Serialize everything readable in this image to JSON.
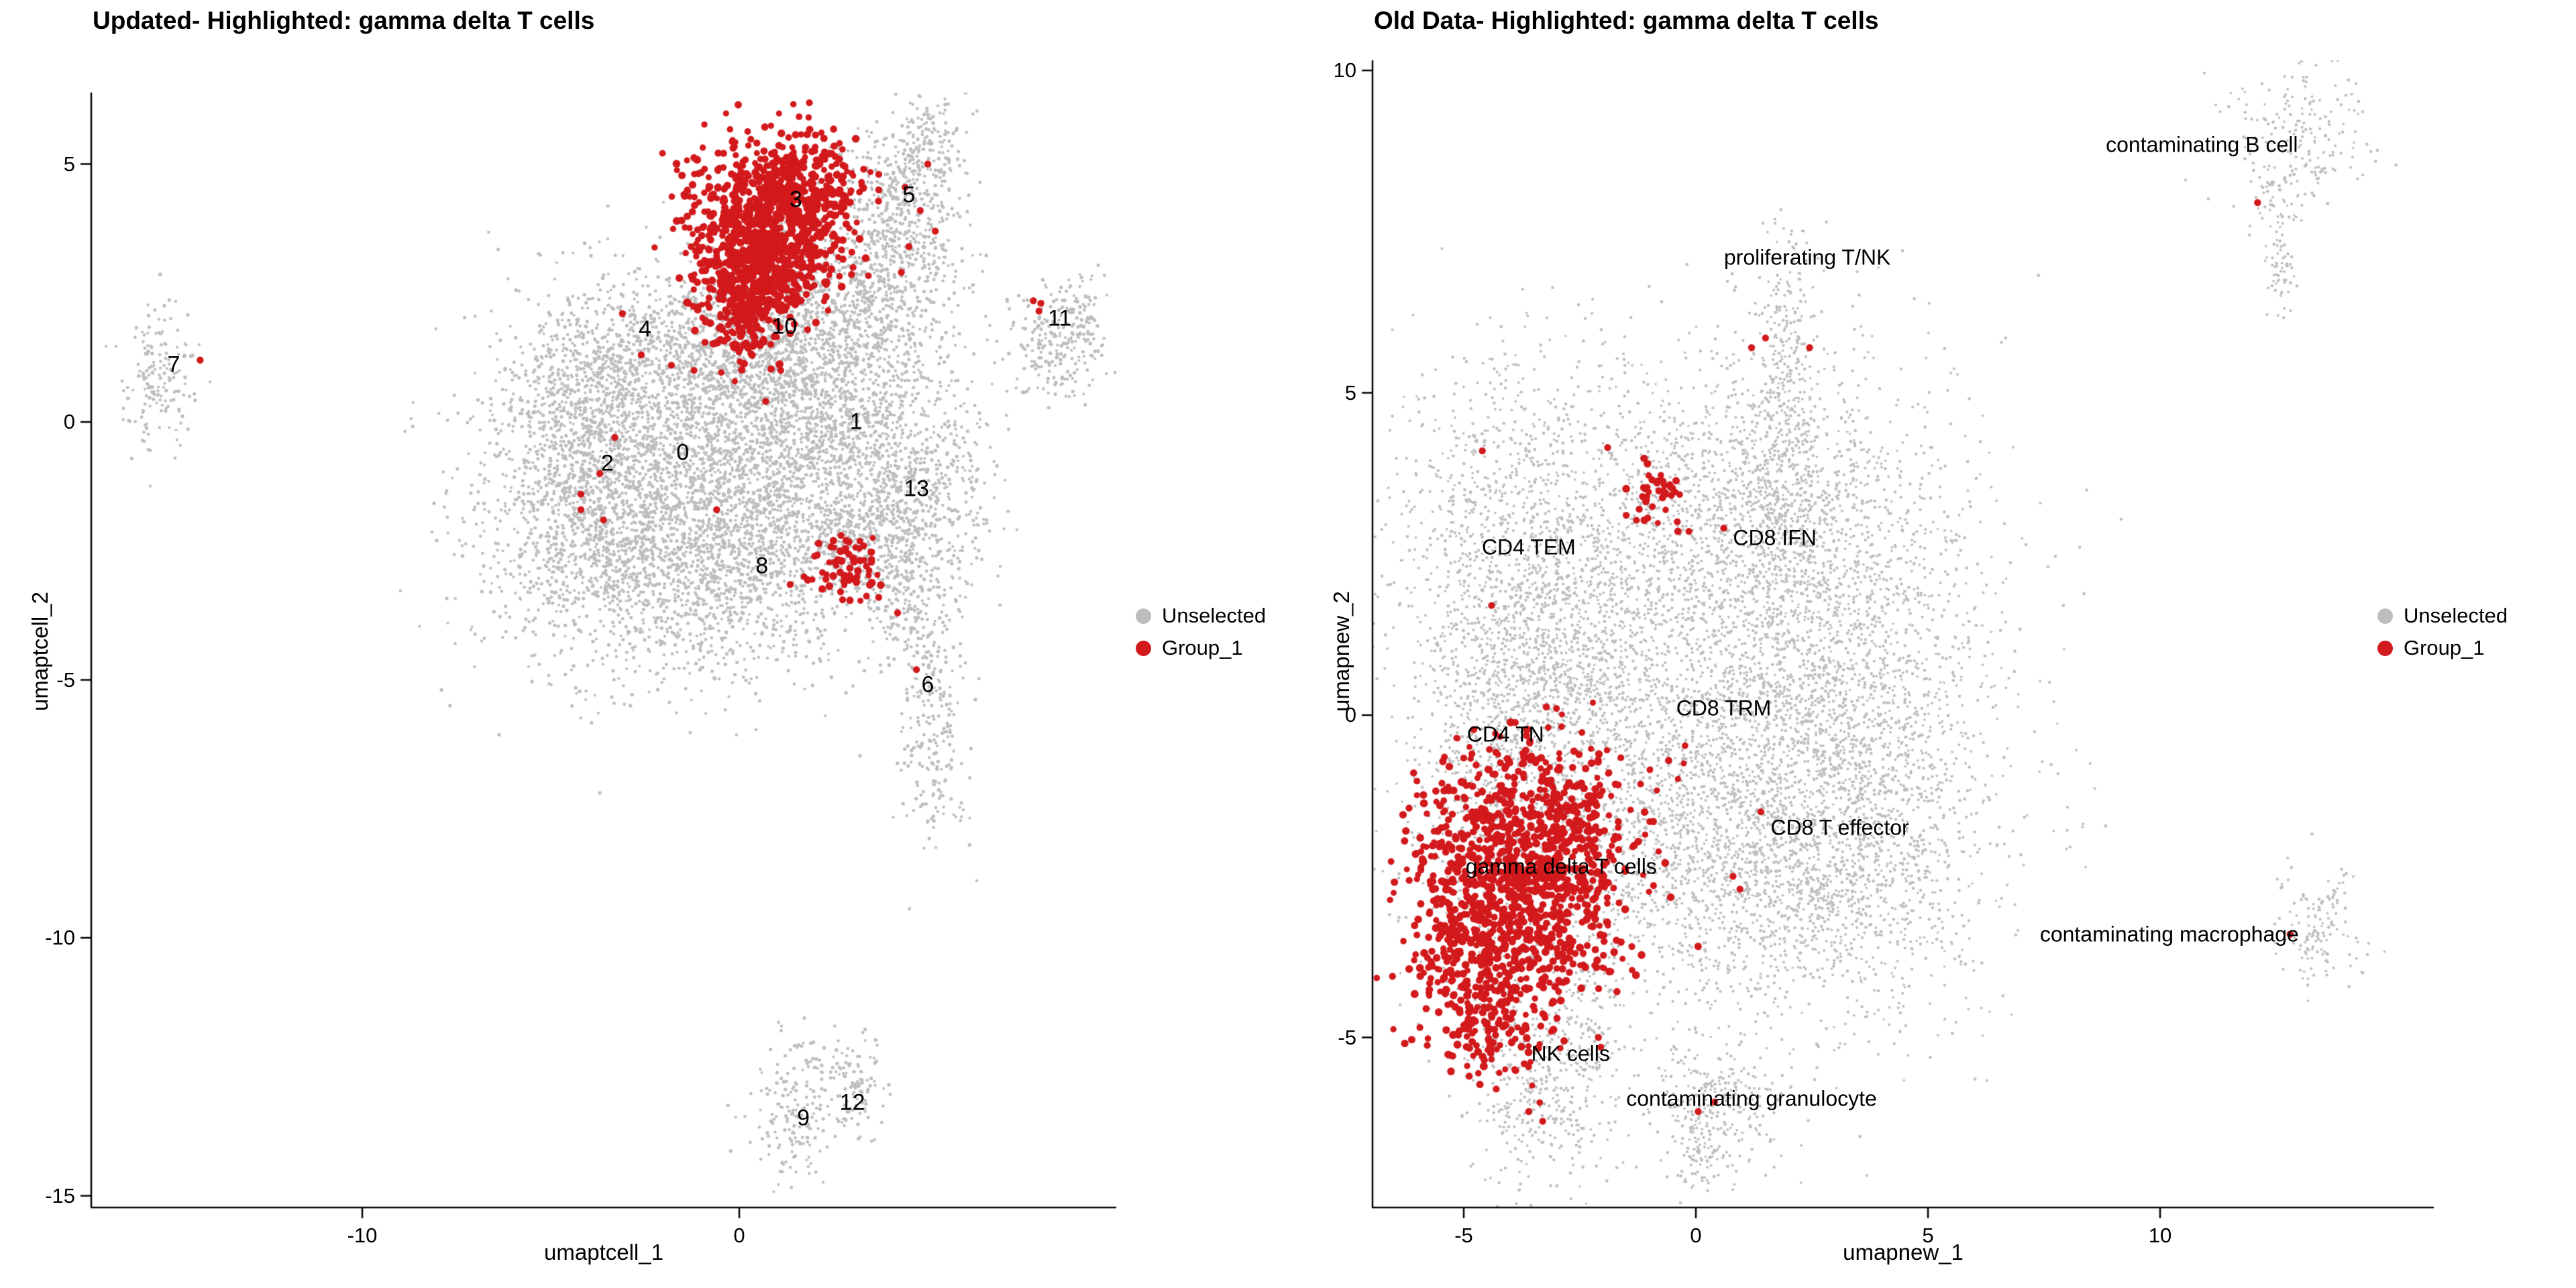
{
  "colors": {
    "unselected": "#BDBDBD",
    "group1": "#D2191C",
    "axis": "#000000",
    "text": "#000000"
  },
  "legend": {
    "unselected": "Unselected",
    "group1": "Group_1"
  },
  "chart_data": [
    {
      "type": "scatter",
      "title": "Updated- Highlighted: gamma delta T cells",
      "xlabel": "umaptcell_1",
      "ylabel": "umaptcell_2",
      "x_ticks": [
        -10,
        0
      ],
      "y_ticks": [
        5,
        0,
        -5,
        -10,
        -15
      ],
      "xlim": [
        -17.2,
        10.0
      ],
      "ylim": [
        -15.2,
        6.3
      ],
      "grid": false,
      "legend_entries": [
        "Unselected",
        "Group_1"
      ],
      "legend_position": "right",
      "scale": {
        "x0": 1102,
        "sx": 56.2,
        "y0": 629,
        "sy": 76.9,
        "panel": [
          136,
          138,
          1664,
          1800
        ]
      },
      "cluster_labels": [
        {
          "t": "0",
          "x": -1.5,
          "y": -0.6
        },
        {
          "t": "1",
          "x": 3.1,
          "y": 0.0
        },
        {
          "t": "2",
          "x": -3.5,
          "y": -0.8
        },
        {
          "t": "3",
          "x": 1.5,
          "y": 4.3
        },
        {
          "t": "4",
          "x": -2.5,
          "y": 1.8
        },
        {
          "t": "5",
          "x": 4.5,
          "y": 4.4
        },
        {
          "t": "6",
          "x": 5.0,
          "y": -5.1
        },
        {
          "t": "7",
          "x": -15.0,
          "y": 1.1
        },
        {
          "t": "8",
          "x": 0.6,
          "y": -2.8
        },
        {
          "t": "9",
          "x": 1.7,
          "y": -13.5
        },
        {
          "t": "10",
          "x": 1.2,
          "y": 1.85
        },
        {
          "t": "11",
          "x": 8.5,
          "y": 2.0
        },
        {
          "t": "12",
          "x": 3.0,
          "y": -13.2
        },
        {
          "t": "13",
          "x": 4.7,
          "y": -1.3
        }
      ],
      "gray_blobs": [
        [
          -2.4,
          -1.3,
          2.3,
          1.7,
          2400
        ],
        [
          1.9,
          -0.7,
          1.9,
          1.7,
          2000
        ],
        [
          -4.0,
          -2.0,
          1.2,
          1.3,
          500
        ],
        [
          -0.2,
          -3.0,
          1.6,
          0.9,
          500
        ],
        [
          -1.0,
          1.3,
          2.0,
          0.9,
          800
        ],
        [
          -3.9,
          0.6,
          0.9,
          0.9,
          350
        ],
        [
          0.9,
          1.9,
          1.0,
          0.75,
          350
        ],
        [
          3.3,
          1.1,
          1.0,
          1.0,
          350
        ],
        [
          4.8,
          -1.5,
          0.9,
          0.9,
          320
        ],
        [
          3.6,
          -2.4,
          0.9,
          0.6,
          220
        ],
        [
          4.3,
          3.9,
          0.85,
          1.05,
          600
        ],
        [
          5.0,
          5.35,
          0.45,
          0.55,
          130
        ],
        [
          3.6,
          2.6,
          0.6,
          0.6,
          120
        ],
        [
          8.35,
          1.5,
          0.7,
          0.55,
          230
        ],
        [
          9.0,
          2.2,
          0.3,
          0.35,
          40
        ],
        [
          -15.4,
          0.75,
          0.5,
          0.75,
          160
        ],
        [
          5.1,
          -5.4,
          0.45,
          1.3,
          280
        ],
        [
          4.4,
          -3.6,
          0.4,
          0.5,
          70
        ],
        [
          1.5,
          -13.4,
          0.55,
          0.75,
          170
        ],
        [
          3.1,
          -12.8,
          0.4,
          0.5,
          110
        ]
      ],
      "red_blobs": [
        [
          0.8,
          3.8,
          1.05,
          0.8,
          750
        ],
        [
          0.3,
          2.7,
          0.7,
          0.55,
          280
        ],
        [
          1.7,
          4.6,
          0.7,
          0.5,
          180
        ],
        [
          0.1,
          1.7,
          0.4,
          0.45,
          60
        ],
        [
          2.85,
          -2.85,
          0.5,
          0.3,
          60
        ]
      ],
      "red_points": [
        [
          -14.3,
          1.2
        ],
        [
          3.7,
          4.8
        ],
        [
          4.4,
          4.55
        ],
        [
          5.0,
          5.0
        ],
        [
          4.8,
          4.1
        ],
        [
          5.2,
          3.7
        ],
        [
          4.5,
          3.4
        ],
        [
          3.7,
          4.5
        ],
        [
          4.3,
          2.9
        ],
        [
          3.3,
          4.9
        ],
        [
          7.8,
          2.35
        ],
        [
          7.95,
          2.15
        ],
        [
          8.0,
          2.3
        ],
        [
          -3.1,
          2.1
        ],
        [
          -2.6,
          1.3
        ],
        [
          -1.8,
          1.1
        ],
        [
          -1.2,
          1.0
        ],
        [
          -0.5,
          1.6
        ],
        [
          -3.3,
          -0.3
        ],
        [
          -3.7,
          -1.0
        ],
        [
          -4.2,
          -1.4
        ],
        [
          -4.2,
          -1.7
        ],
        [
          -3.6,
          -1.9
        ],
        [
          -0.6,
          -1.7
        ],
        [
          2.0,
          -2.6
        ],
        [
          2.3,
          -3.05
        ],
        [
          3.3,
          -2.4
        ],
        [
          2.7,
          -2.2
        ],
        [
          3.7,
          -3.4
        ],
        [
          4.2,
          -3.7
        ],
        [
          4.7,
          -4.8
        ],
        [
          1.1,
          1.0
        ],
        [
          0.7,
          0.4
        ],
        [
          1.35,
          -3.15
        ]
      ],
      "gray_point_radius": 2.4,
      "red_point_radius": 5.2
    },
    {
      "type": "scatter",
      "title": "Old Data- Highlighted: gamma delta T cells",
      "xlabel": "umapnew_1",
      "ylabel": "umapnew_2",
      "x_ticks": [
        -5,
        0,
        5,
        10
      ],
      "y_ticks": [
        10,
        5,
        0,
        -5
      ],
      "xlim": [
        -7.0,
        15.9
      ],
      "ylim": [
        -7.6,
        10.1
      ],
      "grid": false,
      "legend_entries": [
        "Unselected",
        "Group_1"
      ],
      "legend_position": "right",
      "scale": {
        "x0": 2528,
        "sx": 69.2,
        "y0": 1066,
        "sy": 96.1,
        "panel": [
          2046,
          90,
          3628,
          1800
        ]
      },
      "cluster_labels": [
        {
          "t": "CD4 TEM",
          "x": -3.6,
          "y": 2.6
        },
        {
          "t": "CD8 IFN",
          "x": 1.7,
          "y": 2.75
        },
        {
          "t": "CD8 TRM",
          "x": 0.6,
          "y": 0.1
        },
        {
          "t": "CD4 TN",
          "x": -4.1,
          "y": -0.3
        },
        {
          "t": "CD8 T effector",
          "x": 3.1,
          "y": -1.75
        },
        {
          "t": "gamma delta T cells",
          "x": -2.9,
          "y": -2.35
        },
        {
          "t": "NK cells",
          "x": -2.7,
          "y": -5.25
        },
        {
          "t": "contaminating granulocyte",
          "x": 1.2,
          "y": -5.95
        },
        {
          "t": "contaminating macrophage",
          "x": 10.2,
          "y": -3.4
        },
        {
          "t": "proliferating T/NK",
          "x": 2.4,
          "y": 7.1
        },
        {
          "t": "contaminating  B cell",
          "x": 10.9,
          "y": 8.85
        }
      ],
      "gray_blobs": [
        [
          1.2,
          0.2,
          2.6,
          2.4,
          3300
        ],
        [
          3.5,
          -0.2,
          1.2,
          1.7,
          800
        ],
        [
          1.4,
          3.1,
          1.7,
          1.1,
          1100
        ],
        [
          -3.7,
          2.6,
          1.4,
          1.5,
          1200
        ],
        [
          -4.2,
          -1.2,
          1.0,
          1.6,
          700
        ],
        [
          -3.0,
          0.7,
          1.2,
          1.0,
          450
        ],
        [
          2.4,
          -2.7,
          1.8,
          0.9,
          800
        ],
        [
          0.3,
          -1.5,
          1.5,
          1.2,
          600
        ],
        [
          1.9,
          4.1,
          0.35,
          1.2,
          220
        ],
        [
          2.0,
          5.9,
          0.3,
          0.9,
          140
        ],
        [
          -3.3,
          -5.7,
          0.85,
          0.75,
          400
        ],
        [
          -2.3,
          -4.5,
          0.4,
          0.8,
          110
        ],
        [
          0.4,
          -6.1,
          0.75,
          0.5,
          280
        ],
        [
          0.1,
          -7.0,
          0.25,
          0.3,
          50
        ],
        [
          13.4,
          -3.3,
          0.5,
          0.5,
          140
        ],
        [
          13.1,
          9.0,
          0.75,
          0.5,
          190
        ],
        [
          12.5,
          7.95,
          0.3,
          0.3,
          45
        ],
        [
          12.6,
          6.95,
          0.2,
          0.35,
          55
        ]
      ],
      "red_blobs": [
        [
          -4.4,
          -3.4,
          0.85,
          1.0,
          650
        ],
        [
          -3.7,
          -2.0,
          1.2,
          0.7,
          450
        ],
        [
          -2.7,
          -2.8,
          0.6,
          0.9,
          220
        ],
        [
          -3.3,
          -1.0,
          1.1,
          0.5,
          100
        ],
        [
          -4.6,
          -4.6,
          0.4,
          0.4,
          60
        ],
        [
          -0.85,
          3.5,
          0.35,
          0.3,
          40
        ]
      ],
      "red_points": [
        [
          -1.5,
          3.1
        ],
        [
          -0.4,
          3.0
        ],
        [
          -0.15,
          2.85
        ],
        [
          -1.9,
          4.15
        ],
        [
          0.6,
          2.9
        ],
        [
          1.2,
          5.7
        ],
        [
          1.5,
          5.85
        ],
        [
          2.45,
          5.7
        ],
        [
          12.1,
          7.95
        ],
        [
          12.8,
          -3.4
        ],
        [
          0.05,
          -6.15
        ],
        [
          0.4,
          -6.0
        ],
        [
          -2.1,
          -5.0
        ],
        [
          -2.05,
          -5.15
        ],
        [
          -3.9,
          -5.5
        ],
        [
          -4.3,
          -5.8
        ],
        [
          -3.6,
          -6.15
        ],
        [
          -3.3,
          -6.3
        ],
        [
          -4.6,
          -5.3
        ],
        [
          0.8,
          -2.5
        ],
        [
          0.95,
          -2.7
        ],
        [
          1.4,
          -1.5
        ],
        [
          -4.4,
          1.7
        ],
        [
          -4.6,
          4.1
        ]
      ],
      "gray_point_radius": 2.1,
      "red_point_radius": 5.2
    }
  ]
}
